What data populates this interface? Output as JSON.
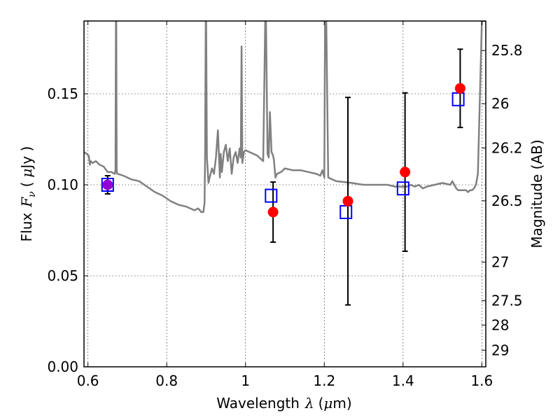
{
  "chart_data": {
    "type": "scatter",
    "xlabel_text": "Wavelength",
    "xlabel_symbol": "λ",
    "xlabel_unit_open": "(",
    "xlabel_unit_mu": "μ",
    "xlabel_unit_rest": "m)",
    "ylabel_text": "Flux",
    "ylabel_symbol": "F",
    "ylabel_subscript": "ν",
    "ylabel_unit_open": "(",
    "ylabel_unit_mu": "μ",
    "ylabel_unit_rest": "Jy )",
    "y2label": "Magnitude (AB)",
    "xlim": [
      0.59,
      1.61
    ],
    "ylim": [
      0.0,
      0.19
    ],
    "x_ticks": [
      {
        "v": 0.6,
        "label": "0.6"
      },
      {
        "v": 0.8,
        "label": "0.8"
      },
      {
        "v": 1.0,
        "label": "1"
      },
      {
        "v": 1.2,
        "label": "1.2"
      },
      {
        "v": 1.4,
        "label": "1.4"
      },
      {
        "v": 1.6,
        "label": "1.6"
      }
    ],
    "y_ticks": [
      {
        "v": 0.0,
        "label": "0.00"
      },
      {
        "v": 0.05,
        "label": "0.05"
      },
      {
        "v": 0.1,
        "label": "0.10"
      },
      {
        "v": 0.15,
        "label": "0.15"
      }
    ],
    "y2_ticks": [
      {
        "mag": 25.8,
        "label": "25.8"
      },
      {
        "mag": 26.0,
        "label": "26"
      },
      {
        "mag": 26.2,
        "label": "26.2"
      },
      {
        "mag": 26.5,
        "label": "26.5"
      },
      {
        "mag": 27.0,
        "label": "27"
      },
      {
        "mag": 27.5,
        "label": "27.5"
      },
      {
        "mag": 28.0,
        "label": "28"
      },
      {
        "mag": 29.0,
        "label": "29"
      }
    ],
    "grid": true,
    "colors": {
      "model": "#808080",
      "observed": "#ff0000",
      "model_points": "#0000ff",
      "purple_marker": "#9400d3",
      "errorbar": "#000000"
    },
    "model_spectrum": {
      "x": [
        0.59,
        0.597,
        0.602,
        0.605,
        0.607,
        0.612,
        0.62,
        0.63,
        0.64,
        0.65,
        0.66,
        0.668,
        0.67,
        0.671,
        0.672,
        0.673,
        0.674,
        0.676,
        0.69,
        0.71,
        0.73,
        0.75,
        0.77,
        0.79,
        0.81,
        0.83,
        0.85,
        0.87,
        0.88,
        0.888,
        0.893,
        0.896,
        0.8975,
        0.899,
        0.9,
        0.902,
        0.906,
        0.91,
        0.915,
        0.92,
        0.925,
        0.93,
        0.935,
        0.937,
        0.94,
        0.945,
        0.95,
        0.955,
        0.96,
        0.965,
        0.97,
        0.975,
        0.98,
        0.985,
        0.988,
        0.99,
        0.992,
        0.996,
        1.0,
        1.01,
        1.02,
        1.03,
        1.04,
        1.045,
        1.05,
        1.052,
        1.056,
        1.059,
        1.062,
        1.066,
        1.07,
        1.072,
        1.076,
        1.08,
        1.09,
        1.1,
        1.12,
        1.14,
        1.16,
        1.18,
        1.19,
        1.195,
        1.2,
        1.202,
        1.205,
        1.21,
        1.23,
        1.27,
        1.3,
        1.33,
        1.36,
        1.38,
        1.4,
        1.41,
        1.42,
        1.43,
        1.44,
        1.45,
        1.46,
        1.48,
        1.5,
        1.52,
        1.525,
        1.53,
        1.535,
        1.54,
        1.545,
        1.55,
        1.56,
        1.565,
        1.57,
        1.575,
        1.58,
        1.585,
        1.59,
        1.6,
        1.605,
        1.61
      ],
      "y": [
        0.118,
        0.117,
        0.116,
        0.111,
        0.113,
        0.112,
        0.113,
        0.111,
        0.11,
        0.107,
        0.107,
        0.106,
        0.108,
        0.19,
        0.19,
        0.108,
        0.106,
        0.106,
        0.105,
        0.103,
        0.102,
        0.099,
        0.096,
        0.094,
        0.091,
        0.089,
        0.088,
        0.086,
        0.087,
        0.085,
        0.085,
        0.09,
        0.115,
        0.19,
        0.19,
        0.115,
        0.101,
        0.105,
        0.109,
        0.106,
        0.115,
        0.13,
        0.104,
        0.117,
        0.107,
        0.118,
        0.122,
        0.113,
        0.12,
        0.106,
        0.115,
        0.118,
        0.112,
        0.12,
        0.115,
        0.176,
        0.112,
        0.118,
        0.119,
        0.118,
        0.117,
        0.116,
        0.114,
        0.113,
        0.19,
        0.19,
        0.117,
        0.115,
        0.14,
        0.118,
        0.116,
        0.114,
        0.104,
        0.106,
        0.107,
        0.109,
        0.108,
        0.108,
        0.107,
        0.106,
        0.105,
        0.108,
        0.104,
        0.19,
        0.19,
        0.104,
        0.102,
        0.101,
        0.1,
        0.1,
        0.1,
        0.099,
        0.099,
        0.099,
        0.1,
        0.099,
        0.1,
        0.098,
        0.099,
        0.1,
        0.101,
        0.1,
        0.102,
        0.1,
        0.098,
        0.097,
        0.097,
        0.097,
        0.097,
        0.096,
        0.097,
        0.097,
        0.098,
        0.1,
        0.106,
        0.19,
        0.19,
        0.19
      ]
    },
    "observed": [
      {
        "x": 0.65,
        "y": 0.1,
        "err": 0.005,
        "color": "purple"
      },
      {
        "x": 1.07,
        "y": 0.085,
        "err": 0.0165
      },
      {
        "x": 1.26,
        "y": 0.091,
        "err": 0.057
      },
      {
        "x": 1.405,
        "y": 0.107,
        "err": 0.0435
      },
      {
        "x": 1.545,
        "y": 0.153,
        "err": 0.0215
      }
    ],
    "model_points": [
      {
        "x": 0.65,
        "y": 0.1
      },
      {
        "x": 1.065,
        "y": 0.094
      },
      {
        "x": 1.255,
        "y": 0.085
      },
      {
        "x": 1.4,
        "y": 0.098
      },
      {
        "x": 1.54,
        "y": 0.147
      }
    ]
  }
}
